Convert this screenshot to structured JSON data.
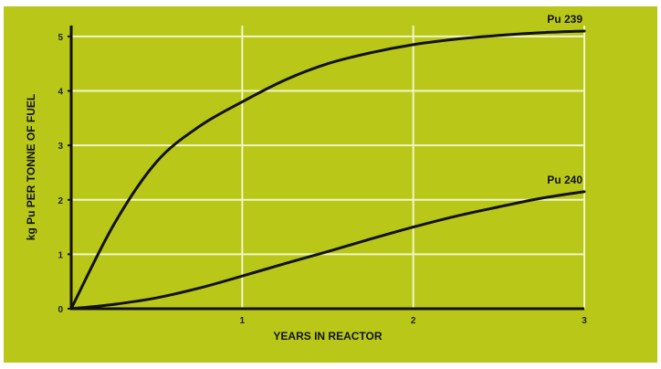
{
  "chart_data": {
    "type": "line",
    "title": "",
    "xlabel": "YEARS IN REACTOR",
    "ylabel": "kg Pu PER TONNE OF FUEL",
    "xlim": [
      0,
      3
    ],
    "ylim": [
      0,
      5.2
    ],
    "x_ticks": [
      "1",
      "2",
      "3"
    ],
    "y_ticks": [
      "0",
      "1",
      "2",
      "3",
      "4",
      "5"
    ],
    "grid": true,
    "colors": {
      "background": "#b9c719",
      "grid": "#f2f5c8",
      "line": "#111111"
    },
    "series": [
      {
        "name": "Pu 239",
        "x": [
          0,
          0.25,
          0.5,
          0.75,
          1.0,
          1.25,
          1.5,
          1.75,
          2.0,
          2.25,
          2.5,
          2.75,
          3.0
        ],
        "y": [
          0,
          1.55,
          2.7,
          3.35,
          3.8,
          4.2,
          4.5,
          4.7,
          4.85,
          4.95,
          5.02,
          5.07,
          5.1
        ]
      },
      {
        "name": "Pu 240",
        "x": [
          0,
          0.25,
          0.5,
          0.75,
          1.0,
          1.25,
          1.5,
          1.75,
          2.0,
          2.25,
          2.5,
          2.75,
          3.0
        ],
        "y": [
          0,
          0.08,
          0.2,
          0.38,
          0.6,
          0.83,
          1.05,
          1.28,
          1.5,
          1.7,
          1.87,
          2.03,
          2.15
        ]
      }
    ]
  }
}
